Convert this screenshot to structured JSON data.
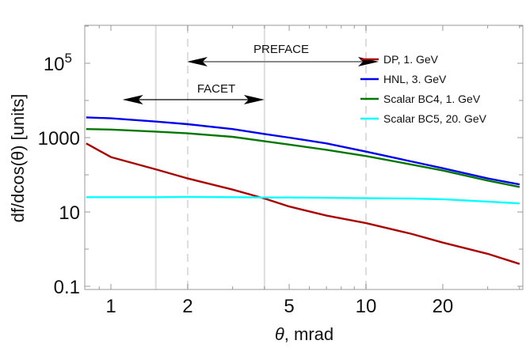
{
  "chart_data": {
    "type": "line",
    "title": "",
    "xlabel": "θ, mrad",
    "ylabel": "df/dcos(θ) [units]",
    "xscale": "log",
    "yscale": "log",
    "xlim": [
      0.8,
      40
    ],
    "ylim": [
      0.1,
      1000000
    ],
    "x_ticks": [
      {
        "value": 1,
        "label": "1"
      },
      {
        "value": 2,
        "label": "2"
      },
      {
        "value": 5,
        "label": "5"
      },
      {
        "value": 10,
        "label": "10"
      },
      {
        "value": 20,
        "label": "20"
      }
    ],
    "y_ticks": [
      {
        "value": 0.1,
        "label": "0.1",
        "sup": ""
      },
      {
        "value": 10,
        "label": "10",
        "sup": ""
      },
      {
        "value": 1000,
        "label": "1000",
        "sup": ""
      },
      {
        "value": 100000,
        "label": "10",
        "sup": "5"
      }
    ],
    "grid": false,
    "legend_position": "upper right inside",
    "series": [
      {
        "name": "DP, 1. GeV",
        "color": "#aa0000",
        "x": [
          0.8,
          1.0,
          1.5,
          2.0,
          3.0,
          4.0,
          5.0,
          7.0,
          10.0,
          15.0,
          20.0,
          30.0,
          40.0
        ],
        "y": [
          700,
          300,
          140,
          80,
          40,
          23,
          14,
          8,
          5,
          2.6,
          1.5,
          0.75,
          0.4
        ]
      },
      {
        "name": "HNL, 3. GeV",
        "color": "#0000ee",
        "x": [
          0.8,
          1.0,
          1.5,
          2.0,
          3.0,
          4.0,
          5.0,
          7.0,
          10.0,
          15.0,
          20.0,
          30.0,
          40.0
        ],
        "y": [
          3500,
          3300,
          2700,
          2300,
          1700,
          1250,
          1000,
          700,
          420,
          230,
          150,
          80,
          55
        ]
      },
      {
        "name": "Scalar BC4, 1. GeV",
        "color": "#007700",
        "x": [
          0.8,
          1.0,
          1.5,
          2.0,
          3.0,
          4.0,
          5.0,
          7.0,
          10.0,
          15.0,
          20.0,
          30.0,
          40.0
        ],
        "y": [
          1700,
          1650,
          1450,
          1300,
          1050,
          800,
          650,
          470,
          320,
          190,
          130,
          70,
          47
        ]
      },
      {
        "name": "Scalar BC5, 20. GeV",
        "color": "#00ffff",
        "x": [
          0.8,
          1.0,
          1.5,
          2.0,
          3.0,
          4.0,
          5.0,
          7.0,
          10.0,
          15.0,
          20.0,
          30.0,
          40.0
        ],
        "y": [
          25,
          25,
          25,
          25.5,
          25,
          24.5,
          24.5,
          24,
          23.5,
          23,
          22,
          19,
          17
        ]
      }
    ],
    "vertical_lines": [
      {
        "x": 1.5,
        "style": "solid",
        "color": "#dddddd"
      },
      {
        "x": 2.0,
        "style": "dashed",
        "color": "#dddddd"
      },
      {
        "x": 4.0,
        "style": "solid",
        "color": "#dddddd"
      },
      {
        "x": 10.0,
        "style": "dashed",
        "color": "#dddddd"
      }
    ],
    "annotations": [
      {
        "text": "PREFACE",
        "x_from": 2.0,
        "x_to": 10.0,
        "y": 100000,
        "arrow_color": "#888888"
      },
      {
        "text": "FACET",
        "x_from": 1.5,
        "x_to": 4.0,
        "y": 10000,
        "arrow_color": "#000000"
      }
    ]
  },
  "labels": {
    "xlabel_theta": "θ",
    "xlabel_rest": ", mrad",
    "ylabel": "df/dcos(θ) [units]"
  }
}
